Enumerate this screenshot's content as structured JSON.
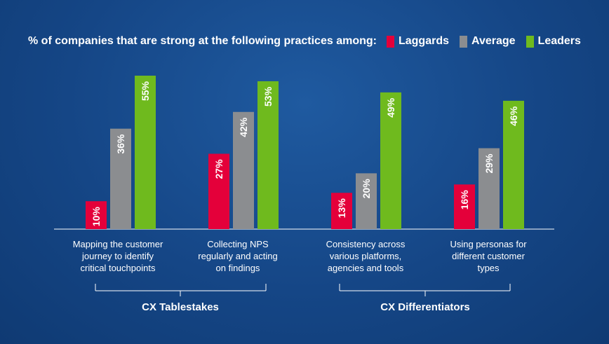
{
  "colors": {
    "laggards": "#e4003a",
    "average": "#8b8d90",
    "leaders": "#6fba1e"
  },
  "legend": {
    "title": "% of companies that are strong at the following practices among:",
    "items": [
      {
        "label": "Laggards",
        "color": "#e4003a"
      },
      {
        "label": "Average",
        "color": "#8b8d90"
      },
      {
        "label": "Leaders",
        "color": "#6fba1e"
      }
    ]
  },
  "groups": [
    {
      "label": "CX Tablestakes"
    },
    {
      "label": "CX Differentiators"
    }
  ],
  "chart_data": {
    "type": "bar",
    "categories": [
      "Mapping the customer journey to identify critical touchpoints",
      "Collecting NPS regularly and acting on findings",
      "Consistency across various platforms, agencies and tools",
      "Using personas for different customer types"
    ],
    "category_lines": [
      [
        "Mapping the customer",
        "journey to identify",
        "critical touchpoints"
      ],
      [
        "Collecting NPS",
        "regularly and acting",
        "on findings"
      ],
      [
        "Consistency across",
        "various platforms,",
        "agencies and tools"
      ],
      [
        "Using personas for",
        "different customer",
        "types"
      ]
    ],
    "series": [
      {
        "name": "Laggards",
        "values": [
          10,
          27,
          13,
          16
        ],
        "labels": [
          "10%",
          "27%",
          "13%",
          "16%"
        ]
      },
      {
        "name": "Average",
        "values": [
          36,
          42,
          20,
          29
        ],
        "labels": [
          "36%",
          "42%",
          "20%",
          "29%"
        ]
      },
      {
        "name": "Leaders",
        "values": [
          55,
          53,
          49,
          46
        ],
        "labels": [
          "55%",
          "53%",
          "49%",
          "46%"
        ]
      }
    ],
    "ylim": [
      0,
      55
    ],
    "grid": false,
    "legend_position": "top"
  }
}
